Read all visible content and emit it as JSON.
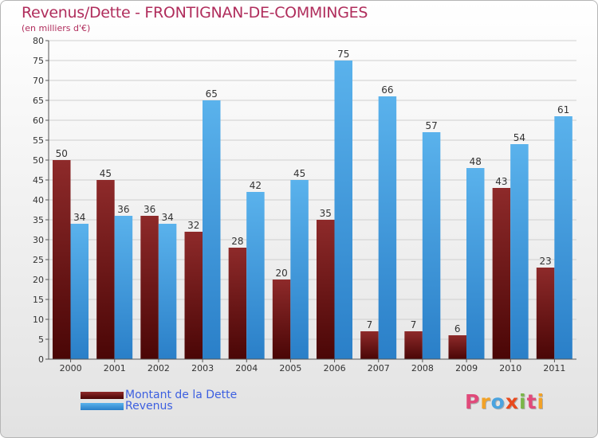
{
  "header": {
    "title": "Revenus/Dette - FRONTIGNAN-DE-COMMINGES",
    "subtitle": "(en milliers d'€)"
  },
  "logo": {
    "text": "Proxiti",
    "letters": [
      "P",
      "r",
      "o",
      "x",
      "i",
      "t",
      "i"
    ],
    "colors": [
      "#e04a7a",
      "#f2a227",
      "#4aa3df",
      "#e8491d",
      "#7ab648",
      "#e04a7a",
      "#f2a227"
    ]
  },
  "colors": {
    "title": "#b02d5c",
    "dette": "#8b1a1a",
    "revenus": "#3a95de",
    "legend_text": "#3c5fe0"
  },
  "chart_data": {
    "type": "bar",
    "categories": [
      "2000",
      "2001",
      "2002",
      "2003",
      "2004",
      "2005",
      "2006",
      "2007",
      "2008",
      "2009",
      "2010",
      "2011"
    ],
    "series": [
      {
        "name": "Montant de la Dette",
        "color": "#8b1a1a",
        "values": [
          50,
          45,
          36,
          32,
          28,
          20,
          35,
          7,
          7,
          6,
          43,
          23
        ]
      },
      {
        "name": "Revenus",
        "color": "#3a95de",
        "values": [
          34,
          36,
          34,
          65,
          42,
          45,
          75,
          66,
          57,
          48,
          54,
          61
        ]
      }
    ],
    "ylim": [
      0,
      80
    ],
    "yticks": [
      "0",
      "5",
      "10",
      "15",
      "20",
      "25",
      "30",
      "35",
      "40",
      "45",
      "50",
      "55",
      "60",
      "65",
      "70",
      "75",
      "80"
    ],
    "grid": true,
    "legend_position": "bottom-left"
  }
}
